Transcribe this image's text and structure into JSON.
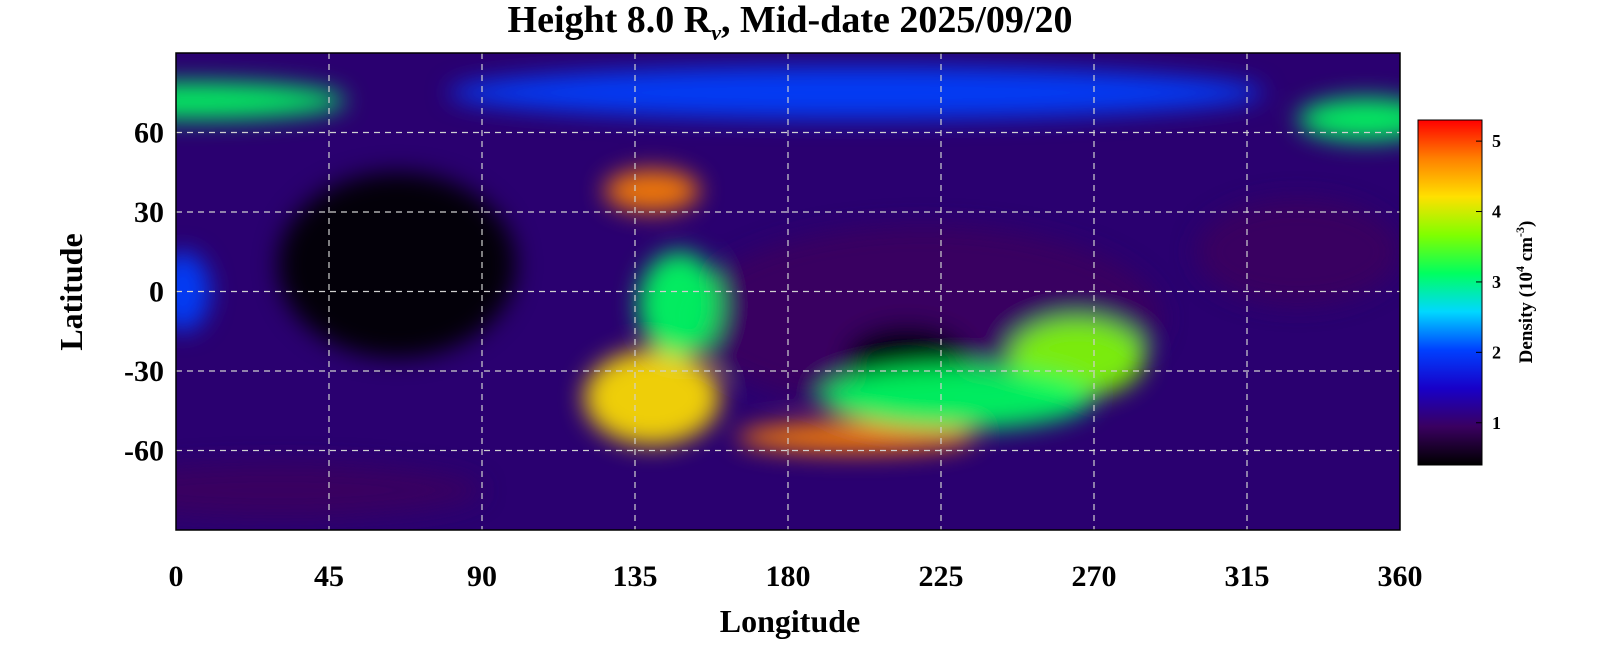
{
  "chart_data": {
    "type": "heatmap",
    "title_parts": {
      "prefix": "Height 8.0 R",
      "subscript": "v",
      "suffix": ", Mid-date 2025/09/20"
    },
    "xlabel": "Longitude",
    "ylabel": "Latitude",
    "xlim": [
      0,
      360
    ],
    "ylim": [
      -90,
      90
    ],
    "xticks": [
      0,
      45,
      90,
      135,
      180,
      225,
      270,
      315,
      360
    ],
    "yticks": [
      60,
      30,
      0,
      -30,
      -60
    ],
    "grid": true,
    "colorbar": {
      "label_parts": {
        "prefix": "Density (10",
        "exp": "4",
        "mid": " cm",
        "exp2": "-3",
        "suffix": ")"
      },
      "range": [
        0.4,
        5.3
      ],
      "ticks": [
        1,
        2,
        3,
        4,
        5
      ],
      "colors": [
        "#000000",
        "#3a0060",
        "#1800c8",
        "#0040ff",
        "#00d8ff",
        "#00ff60",
        "#80ff00",
        "#ffe000",
        "#ff8000",
        "#ff0000"
      ]
    },
    "features": [
      {
        "lon": 65,
        "lat": 10,
        "value": 0.6,
        "sx": 35,
        "sy": 35
      },
      {
        "lon": 330,
        "lat": 15,
        "value": 0.8,
        "sx": 30,
        "sy": 20
      },
      {
        "lon": 220,
        "lat": -10,
        "value": 0.8,
        "sx": 70,
        "sy": 35
      },
      {
        "lon": 215,
        "lat": -25,
        "value": 0.6,
        "sx": 18,
        "sy": 12
      },
      {
        "lon": 30,
        "lat": -75,
        "value": 1.1,
        "sx": 60,
        "sy": 10
      },
      {
        "lon": 140,
        "lat": -40,
        "value": 4.3,
        "sx": 20,
        "sy": 18
      },
      {
        "lon": 148,
        "lat": -5,
        "value": 3.2,
        "sx": 12,
        "sy": 20
      },
      {
        "lon": 140,
        "lat": 38,
        "value": 4.8,
        "sx": 14,
        "sy": 8
      },
      {
        "lon": 200,
        "lat": -55,
        "value": 4.6,
        "sx": 35,
        "sy": 6
      },
      {
        "lon": 265,
        "lat": -25,
        "value": 3.8,
        "sx": 20,
        "sy": 15
      },
      {
        "lon": 230,
        "lat": -40,
        "value": 3.0,
        "sx": 40,
        "sy": 12
      },
      {
        "lon": 5,
        "lat": 72,
        "value": 3.0,
        "sx": 45,
        "sy": 7
      },
      {
        "lon": 350,
        "lat": 65,
        "value": 3.0,
        "sx": 20,
        "sy": 8
      },
      {
        "lon": 200,
        "lat": 75,
        "value": 2.0,
        "sx": 120,
        "sy": 10
      },
      {
        "lon": 2,
        "lat": 0,
        "value": 2.2,
        "sx": 8,
        "sy": 15
      }
    ]
  }
}
